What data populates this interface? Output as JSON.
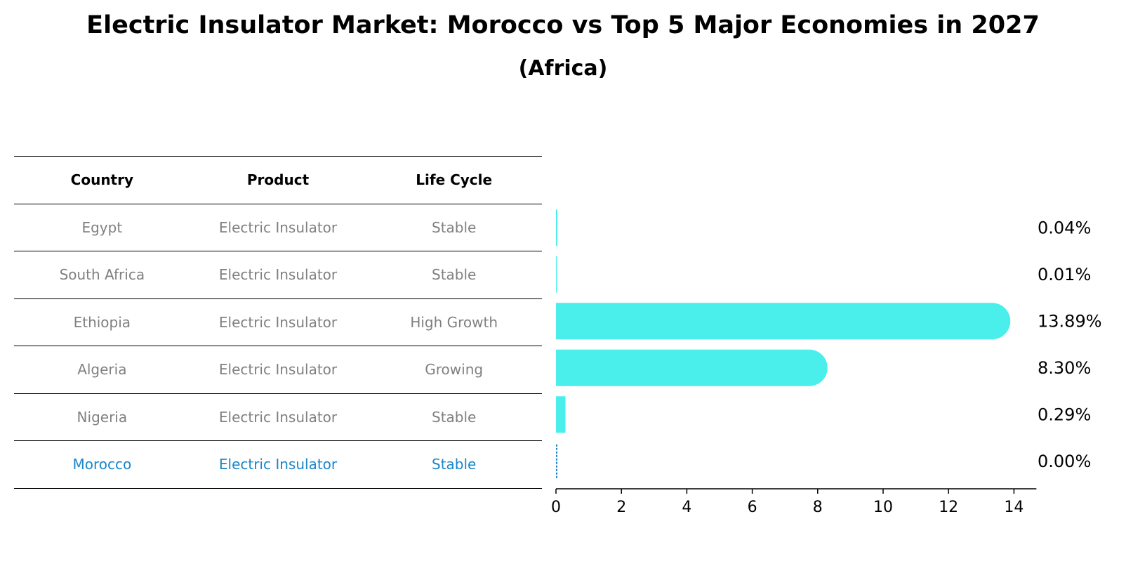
{
  "chart_data": {
    "type": "bar",
    "orientation": "horizontal",
    "title": "Electric Insulator Market: Morocco vs Top 5 Major Economies in 2027",
    "subtitle": "(Africa)",
    "table": {
      "headers": [
        "Country",
        "Product",
        "Life Cycle"
      ],
      "rows": [
        {
          "country": "Egypt",
          "product": "Electric Insulator",
          "life_cycle": "Stable"
        },
        {
          "country": "South Africa",
          "product": "Electric Insulator",
          "life_cycle": "Stable"
        },
        {
          "country": "Ethiopia",
          "product": "Electric Insulator",
          "life_cycle": "High Growth"
        },
        {
          "country": "Algeria",
          "product": "Electric Insulator",
          "life_cycle": "Growing"
        },
        {
          "country": "Nigeria",
          "product": "Electric Insulator",
          "life_cycle": "Stable"
        },
        {
          "country": "Morocco",
          "product": "Electric Insulator",
          "life_cycle": "Stable"
        }
      ]
    },
    "categories": [
      "Egypt",
      "South Africa",
      "Ethiopia",
      "Algeria",
      "Nigeria",
      "Morocco"
    ],
    "values": [
      0.04,
      0.01,
      13.89,
      8.3,
      0.29,
      0.0
    ],
    "value_labels": [
      "0.04%",
      "0.01%",
      "13.89%",
      "8.30%",
      "0.29%",
      "0.00%"
    ],
    "highlight": "Morocco",
    "xticks": [
      0,
      2,
      4,
      6,
      8,
      10,
      12,
      14
    ],
    "xlim": [
      0,
      14.6
    ],
    "xlabel": "",
    "ylabel": "",
    "colors": {
      "bar": "#4aeeea",
      "highlight": "#1a86c9",
      "muted_text": "#808080"
    }
  }
}
